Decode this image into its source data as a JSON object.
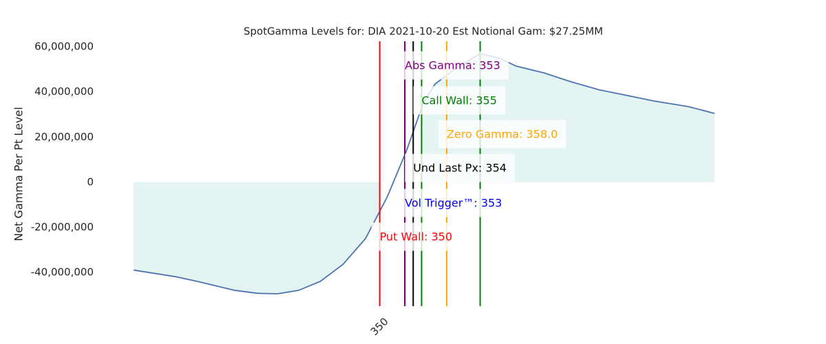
{
  "chart_data": {
    "type": "line",
    "title": "SpotGamma Levels for: DIA  2021-10-20 Est Notional Gam: $27.25MM",
    "y_label": "Net Gamma Per Pt Level",
    "color": "#4c72b0",
    "fill_color": "#e3f4f2",
    "x": [
      320.6,
      325.7,
      328.2,
      332.7,
      335.4,
      337.8,
      340.3,
      342.9,
      345.6,
      348.3,
      350.9,
      353.2,
      355.2,
      356.6,
      358.9,
      362,
      364.3,
      366.3,
      369.6,
      372.9,
      376.2,
      379.5,
      382.8,
      386.9,
      390
    ],
    "values": [
      -39000000,
      -42000000,
      -44000000,
      -48000000,
      -49300000,
      -49500000,
      -48000000,
      -44000000,
      -36500000,
      -25000000,
      -6500000,
      14000000,
      35000000,
      43500000,
      50000000,
      57000000,
      55000000,
      51500000,
      48500000,
      44500000,
      41000000,
      38500000,
      36000000,
      33500000,
      30500000
    ],
    "xlim": [
      320.5,
      390
    ],
    "xticks": [
      350
    ],
    "ylim": [
      -55000000,
      62500000
    ],
    "yticks": [
      {
        "value": -40000000,
        "label": "-40,000,000"
      },
      {
        "value": -20000000,
        "label": "-20,000,000"
      },
      0,
      {
        "value": 20000000,
        "label": "20,000,000"
      },
      {
        "value": 40000000,
        "label": "40,000,000"
      },
      {
        "value": 60000000,
        "label": "60,000,000"
      }
    ],
    "levels": [
      {
        "value": 350,
        "color": "red"
      },
      {
        "value": 353,
        "color": "blue"
      },
      {
        "value": 353,
        "color": "purple"
      },
      {
        "value": 354,
        "color": "black"
      },
      {
        "value": 355,
        "color": "green"
      },
      {
        "value": 358,
        "color": "orange"
      },
      {
        "value": 362,
        "color": "green"
      }
    ],
    "annotations": [
      {
        "text": "Abs Gamma: 353",
        "x": 353,
        "y": 51500000,
        "color": "purple"
      },
      {
        "text": "Call Wall: 355",
        "x": 355,
        "y": 36000000,
        "color": "green"
      },
      {
        "text": "Zero Gamma: 358.0",
        "x": 358,
        "y": 21000000,
        "color": "orange"
      },
      {
        "text": "Und Last Px: 354",
        "x": 354,
        "y": 6000000,
        "color": "black"
      },
      {
        "text": "Vol Trigger™: 353",
        "x": 353,
        "y": -9500000,
        "color": "blue"
      },
      {
        "text": "Put Wall: 350",
        "x": 350,
        "y": -24500000,
        "color": "red"
      }
    ],
    "fill_unshaded_between": [
      350,
      355
    ]
  }
}
